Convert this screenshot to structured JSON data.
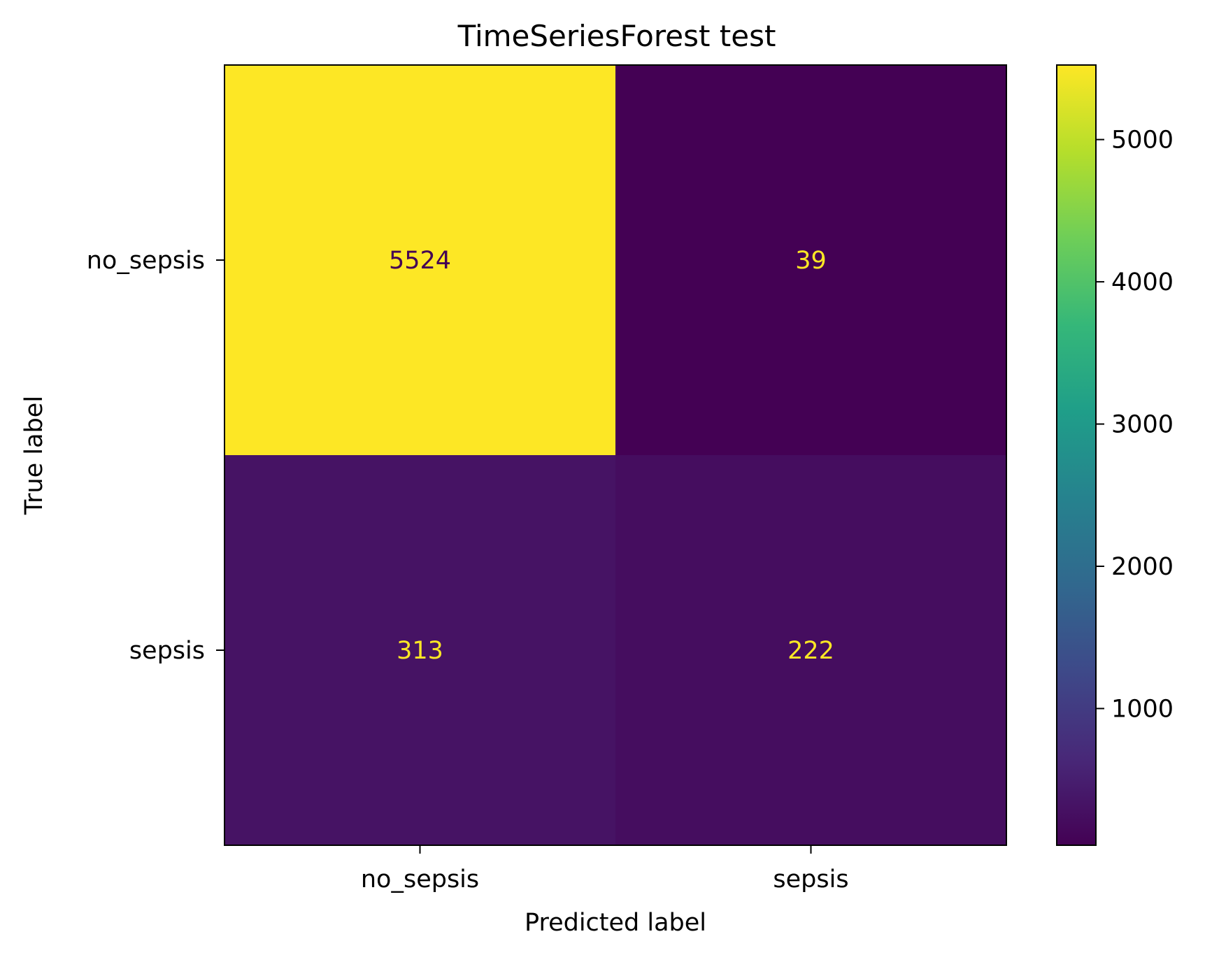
{
  "chart_data": {
    "type": "heatmap",
    "title": "TimeSeriesForest test",
    "xlabel": "Predicted label",
    "ylabel": "True label",
    "x_categories": [
      "no_sepsis",
      "sepsis"
    ],
    "y_categories": [
      "no_sepsis",
      "sepsis"
    ],
    "matrix": [
      [
        5524,
        39
      ],
      [
        313,
        222
      ]
    ],
    "colormap": "viridis",
    "colorbar": {
      "vmin": 39,
      "vmax": 5524,
      "ticks": [
        1000,
        2000,
        3000,
        4000,
        5000
      ],
      "tick_labels": [
        "1000",
        "2000",
        "3000",
        "4000",
        "5000"
      ]
    },
    "grid": false,
    "legend": "colorbar-right"
  }
}
